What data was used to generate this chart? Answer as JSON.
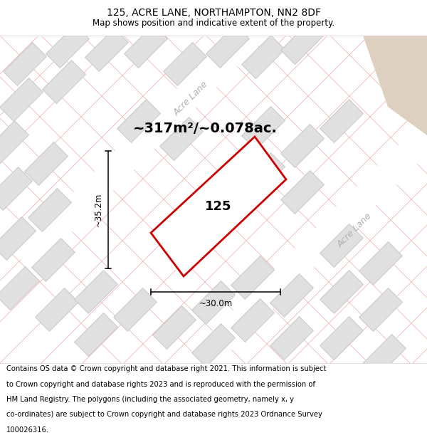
{
  "title": "125, ACRE LANE, NORTHAMPTON, NN2 8DF",
  "subtitle": "Map shows position and indicative extent of the property.",
  "footer": "Contains OS data © Crown copyright and database right 2021. This information is subject to Crown copyright and database rights 2023 and is reproduced with the permission of HM Land Registry. The polygons (including the associated geometry, namely x, y co-ordinates) are subject to Crown copyright and database rights 2023 Ordnance Survey 100026316.",
  "area_label": "~317m²/~0.078ac.",
  "width_label": "~30.0m",
  "height_label": "~35.2m",
  "plot_number": "125",
  "bg_color": "#ebebeb",
  "road_color": "#ffffff",
  "road_label_color": "#b0b0b0",
  "building_fill": "#e0e0e0",
  "building_edge": "#c8c8c8",
  "grid_line_color": "#f0b8b8",
  "plot_edge_color": "#cc0000",
  "plot_fill_color": "#ffffff",
  "sandy_color": "#ddd0c0",
  "title_fontsize": 10,
  "subtitle_fontsize": 8.5,
  "footer_fontsize": 7.2,
  "area_fontsize": 14,
  "dim_fontsize": 8.5,
  "plot_label_fontsize": 13,
  "road_label_fontsize": 9
}
